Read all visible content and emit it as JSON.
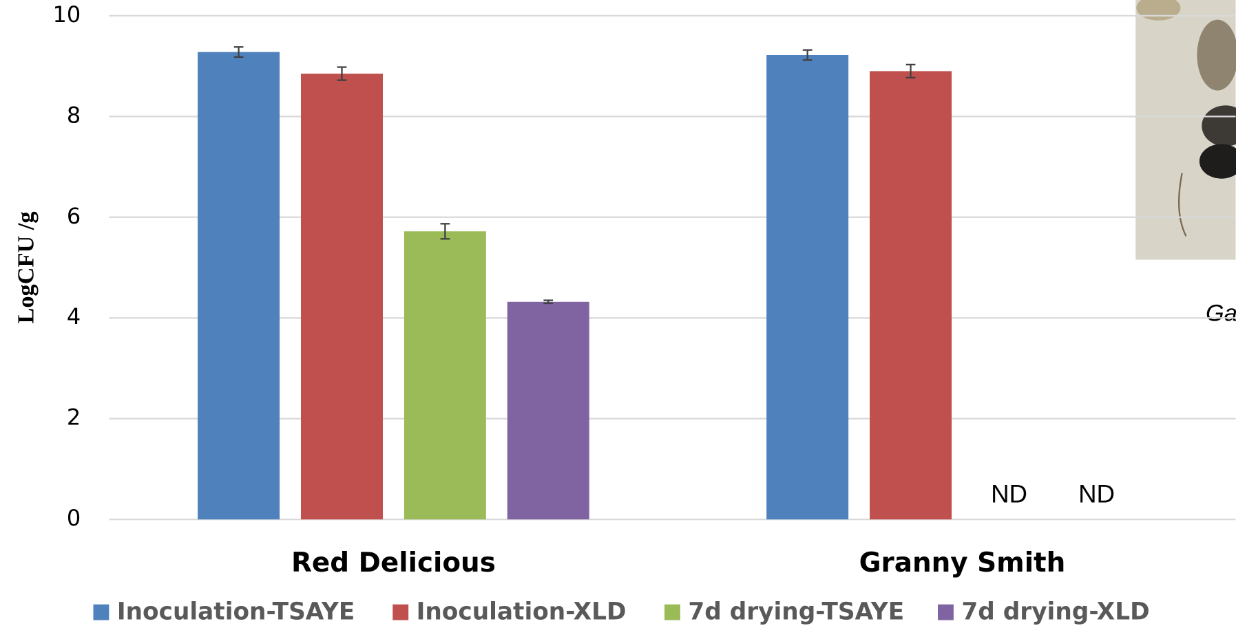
{
  "chart_data": {
    "type": "bar",
    "ylabel": "LogCFU /g",
    "categories": [
      "Red Delicious",
      "Granny Smith"
    ],
    "series": [
      {
        "name": "Inoculation-TSAYE",
        "color": "#4f81bd",
        "values": [
          9.28,
          9.22
        ],
        "errors": [
          0.1,
          0.1
        ]
      },
      {
        "name": "Inoculation-XLD",
        "color": "#c0504d",
        "values": [
          8.85,
          8.9
        ],
        "errors": [
          0.13,
          0.13
        ]
      },
      {
        "name": "7d drying-TSAYE",
        "color": "#9bbb59",
        "values": [
          5.72,
          null
        ],
        "errors": [
          0.15,
          null
        ],
        "value_labels": [
          null,
          "ND"
        ]
      },
      {
        "name": "7d drying-XLD",
        "color": "#8064a2",
        "values": [
          4.32,
          null
        ],
        "errors": [
          0.03,
          null
        ],
        "value_labels": [
          null,
          "ND"
        ]
      }
    ],
    "ylim": [
      0,
      10
    ],
    "yticks": [
      0,
      2,
      4,
      6,
      8,
      10
    ],
    "grid": true,
    "caption": "Ga"
  }
}
